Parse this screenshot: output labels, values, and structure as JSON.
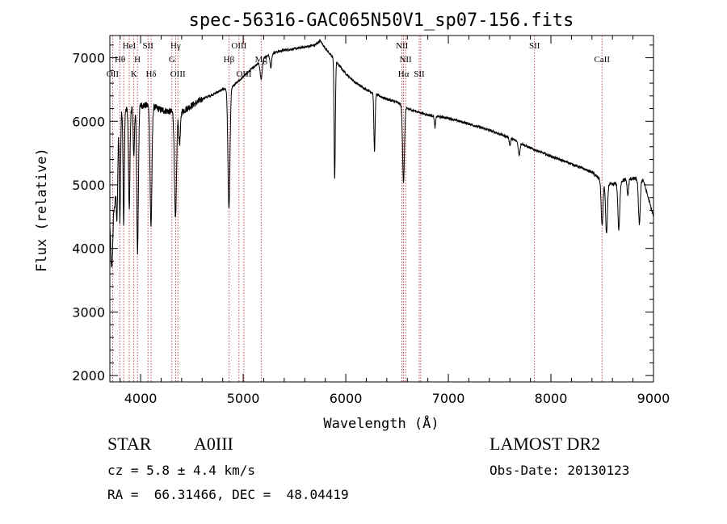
{
  "chart_data": {
    "type": "line",
    "title": "spec-56316-GAC065N50V1_sp07-156.fits",
    "xlabel": "Wavelength (Å)",
    "ylabel": "Flux (relative)",
    "xlim": [
      3700,
      9000
    ],
    "ylim": [
      1900,
      7350
    ],
    "xticks": [
      4000,
      5000,
      6000,
      7000,
      8000,
      9000
    ],
    "yticks": [
      2000,
      3000,
      4000,
      5000,
      6000,
      7000
    ],
    "grid": false,
    "line_color": "#000000",
    "marker_color": "#b22222",
    "lines": [
      {
        "w": 3727,
        "label": "OII",
        "row": 3
      },
      {
        "w": 3799,
        "label": "Hθ",
        "row": 2
      },
      {
        "w": 3835,
        "label": "",
        "row": 0
      },
      {
        "w": 3889,
        "label": "HeI",
        "row": 1
      },
      {
        "w": 3934,
        "label": "K",
        "row": 3
      },
      {
        "w": 3969,
        "label": "H",
        "row": 2
      },
      {
        "w": 4072,
        "label": "SII",
        "row": 1
      },
      {
        "w": 4102,
        "label": "Hδ",
        "row": 3
      },
      {
        "w": 4305,
        "label": "G",
        "row": 2
      },
      {
        "w": 4341,
        "label": "Hγ",
        "row": 1
      },
      {
        "w": 4363,
        "label": "OIII",
        "row": 3
      },
      {
        "w": 4861,
        "label": "Hβ",
        "row": 2
      },
      {
        "w": 4959,
        "label": "OIII",
        "row": 1
      },
      {
        "w": 5007,
        "label": "OIII",
        "row": 3
      },
      {
        "w": 5175,
        "label": "Mg",
        "row": 2
      },
      {
        "w": 6548,
        "label": "NII",
        "row": 1
      },
      {
        "w": 6563,
        "label": "Hα",
        "row": 3
      },
      {
        "w": 6583,
        "label": "NII",
        "row": 2
      },
      {
        "w": 6716,
        "label": "SII",
        "row": 3
      },
      {
        "w": 6731,
        "label": "",
        "row": 0
      },
      {
        "w": 7840,
        "label": "SII",
        "row": 1
      },
      {
        "w": 8498,
        "label": "CaII",
        "row": 2
      }
    ],
    "continuum": [
      [
        3700,
        4700
      ],
      [
        3750,
        5700
      ],
      [
        3800,
        6150
      ],
      [
        3900,
        6200
      ],
      [
        4000,
        6250
      ],
      [
        4100,
        6250
      ],
      [
        4200,
        6180
      ],
      [
        4300,
        6150
      ],
      [
        4400,
        6150
      ],
      [
        4500,
        6250
      ],
      [
        4600,
        6350
      ],
      [
        4700,
        6420
      ],
      [
        4800,
        6500
      ],
      [
        4900,
        6550
      ],
      [
        5000,
        6700
      ],
      [
        5100,
        6850
      ],
      [
        5200,
        7000
      ],
      [
        5300,
        7080
      ],
      [
        5400,
        7120
      ],
      [
        5500,
        7140
      ],
      [
        5600,
        7170
      ],
      [
        5700,
        7200
      ],
      [
        5750,
        7270
      ],
      [
        5800,
        7150
      ],
      [
        5900,
        6950
      ],
      [
        6000,
        6750
      ],
      [
        6100,
        6600
      ],
      [
        6200,
        6500
      ],
      [
        6300,
        6420
      ],
      [
        6400,
        6350
      ],
      [
        6500,
        6300
      ],
      [
        6600,
        6200
      ],
      [
        6700,
        6150
      ],
      [
        6800,
        6100
      ],
      [
        7000,
        6050
      ],
      [
        7200,
        5960
      ],
      [
        7400,
        5860
      ],
      [
        7600,
        5740
      ],
      [
        7800,
        5580
      ],
      [
        8000,
        5450
      ],
      [
        8200,
        5330
      ],
      [
        8400,
        5200
      ],
      [
        8500,
        5050
      ],
      [
        8600,
        5000
      ],
      [
        8700,
        5070
      ],
      [
        8800,
        5100
      ],
      [
        8900,
        5080
      ],
      [
        9000,
        4500
      ]
    ],
    "absorption_features": [
      {
        "w": 3720,
        "depth": 1400,
        "width": 12
      },
      {
        "w": 3750,
        "depth": 900,
        "width": 10
      },
      {
        "w": 3770,
        "depth": 1300,
        "width": 7
      },
      {
        "w": 3798,
        "depth": 1700,
        "width": 6
      },
      {
        "w": 3835,
        "depth": 1800,
        "width": 6
      },
      {
        "w": 3889,
        "depth": 1600,
        "width": 7
      },
      {
        "w": 3934,
        "depth": 800,
        "width": 6
      },
      {
        "w": 3970,
        "depth": 2300,
        "width": 8
      },
      {
        "w": 4101,
        "depth": 1900,
        "width": 9
      },
      {
        "w": 4340,
        "depth": 1700,
        "width": 10
      },
      {
        "w": 4380,
        "depth": 500,
        "width": 8
      },
      {
        "w": 4861,
        "depth": 1900,
        "width": 10
      },
      {
        "w": 5175,
        "depth": 300,
        "width": 10
      },
      {
        "w": 5270,
        "depth": 200,
        "width": 8
      },
      {
        "w": 5890,
        "depth": 1400,
        "width": 5
      },
      {
        "w": 5896,
        "depth": 800,
        "width": 5
      },
      {
        "w": 6280,
        "depth": 900,
        "width": 6
      },
      {
        "w": 6563,
        "depth": 1200,
        "width": 9
      },
      {
        "w": 6870,
        "depth": 180,
        "width": 6
      },
      {
        "w": 7600,
        "depth": 120,
        "width": 6
      },
      {
        "w": 7690,
        "depth": 200,
        "width": 8
      },
      {
        "w": 8499,
        "depth": 700,
        "width": 9
      },
      {
        "w": 8542,
        "depth": 800,
        "width": 9
      },
      {
        "w": 8662,
        "depth": 750,
        "width": 9
      },
      {
        "w": 8750,
        "depth": 250,
        "width": 7
      },
      {
        "w": 8862,
        "depth": 700,
        "width": 9
      }
    ]
  },
  "info": {
    "object_type": "STAR",
    "subclass": "A0III",
    "survey": "LAMOST DR2",
    "redshift": "cz = 5.8 ± 4.4 km/s",
    "obs_date": "Obs-Date: 20130123",
    "coords": "RA =  66.31466, DEC =  48.04419"
  }
}
